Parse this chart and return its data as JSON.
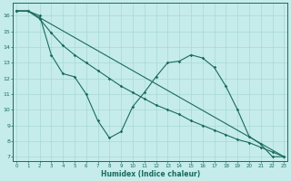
{
  "xlabel": "Humidex (Indice chaleur)",
  "bg_color": "#c5ecea",
  "line_color": "#1a6b5a",
  "grid_color": "#a8d8d2",
  "xlim": [
    -0.3,
    23.3
  ],
  "ylim": [
    6.7,
    16.8
  ],
  "yticks": [
    7,
    8,
    9,
    10,
    11,
    12,
    13,
    14,
    15,
    16
  ],
  "xticks": [
    0,
    1,
    2,
    3,
    4,
    5,
    6,
    7,
    8,
    9,
    10,
    11,
    12,
    13,
    14,
    15,
    16,
    17,
    18,
    19,
    20,
    21,
    22,
    23
  ],
  "line1_x": [
    0,
    1,
    2,
    3,
    4,
    5,
    6,
    7,
    8,
    9,
    10,
    11,
    12,
    13,
    14,
    15,
    16,
    17,
    18,
    19,
    20,
    21,
    22,
    23
  ],
  "line1_y": [
    16.3,
    16.3,
    16.0,
    13.5,
    12.3,
    12.1,
    11.0,
    9.3,
    8.2,
    8.6,
    10.2,
    11.1,
    12.1,
    13.0,
    13.1,
    13.5,
    13.3,
    12.7,
    11.5,
    10.0,
    8.3,
    7.8,
    7.0,
    7.0
  ],
  "line2_x": [
    0,
    1,
    23
  ],
  "line2_y": [
    16.3,
    16.3,
    7.0
  ],
  "line3_x": [
    0,
    1,
    2,
    3,
    4,
    5,
    6,
    7,
    8,
    9,
    10,
    11,
    12,
    13,
    14,
    15,
    16,
    17,
    18,
    19,
    20,
    21,
    22,
    23
  ],
  "line3_y": [
    16.3,
    16.3,
    15.8,
    14.9,
    14.1,
    13.5,
    13.0,
    12.5,
    12.0,
    11.5,
    11.1,
    10.7,
    10.3,
    10.0,
    9.7,
    9.3,
    9.0,
    8.7,
    8.4,
    8.1,
    7.9,
    7.6,
    7.3,
    7.0
  ]
}
